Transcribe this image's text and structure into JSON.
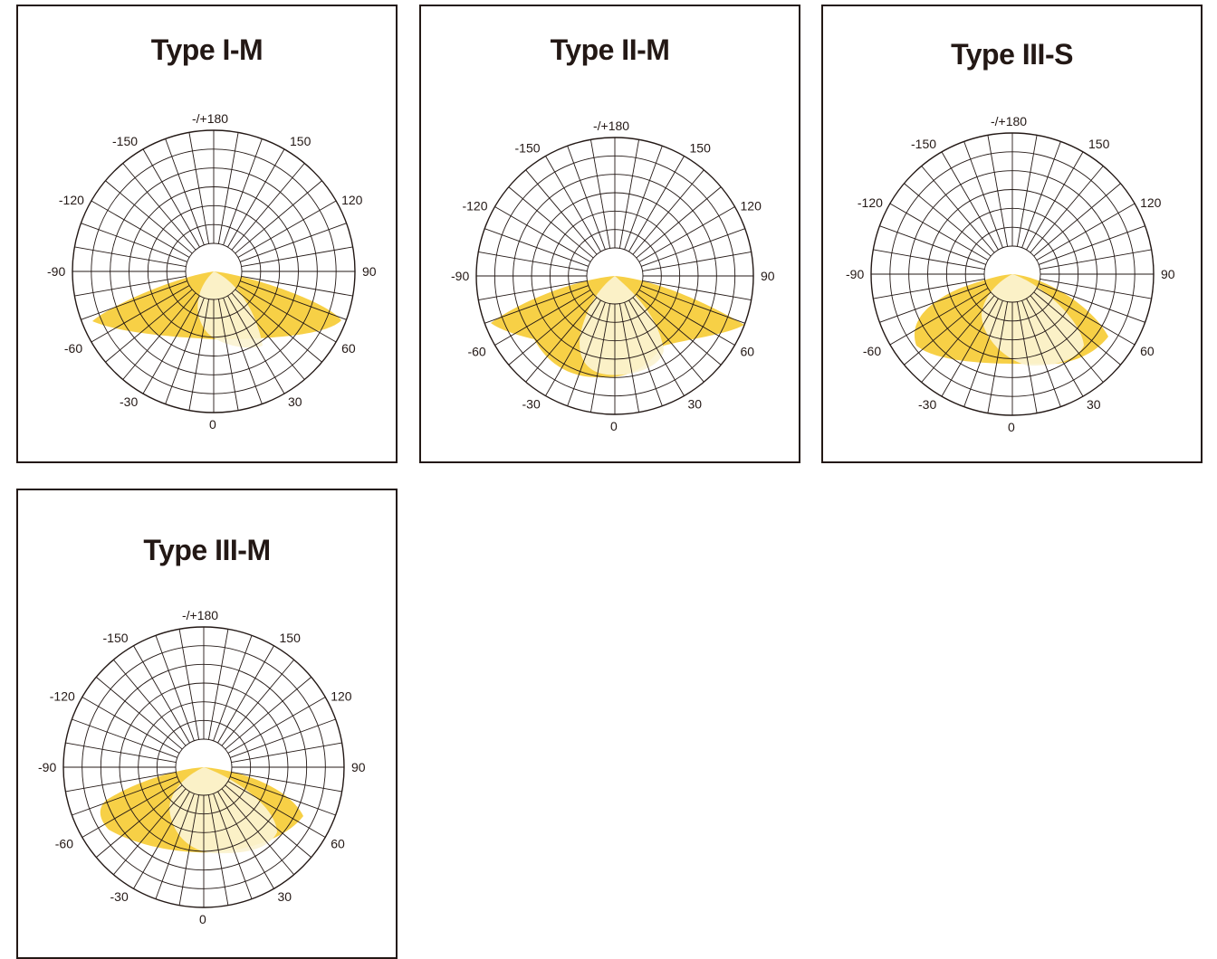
{
  "colors": {
    "frame": "#231815",
    "outer_beam": "#F7D046",
    "inner_beam": "#FBF3D2",
    "grid": "#231815"
  },
  "angle_labels": {
    "top": "-/+180",
    "upper_left": "-150",
    "upper_right": "150",
    "mid_upper_left": "-120",
    "mid_upper_right": "120",
    "left": "-90",
    "right": "90",
    "lower_left": "-60",
    "lower_right": "60",
    "bottom_left": "-30",
    "bottom_right": "30",
    "bottom": "0"
  },
  "panels": [
    {
      "title": "Type I-M"
    },
    {
      "title": "Type II-M"
    },
    {
      "title": "Type III-S"
    },
    {
      "title": "Type III-M"
    }
  ]
}
